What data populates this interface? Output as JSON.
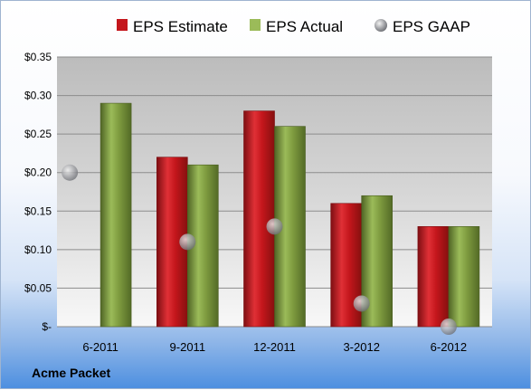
{
  "chart_data": {
    "type": "bar",
    "categories": [
      "6-2011",
      "9-2011",
      "12-2011",
      "3-2012",
      "6-2012"
    ],
    "series": [
      {
        "name": "EPS Estimate",
        "values": [
          null,
          0.22,
          0.28,
          0.16,
          0.13
        ],
        "color": "#c4161c",
        "kind": "bar"
      },
      {
        "name": "EPS Actual",
        "values": [
          0.29,
          0.21,
          0.26,
          0.17,
          0.13
        ],
        "color": "#77933c",
        "kind": "bar"
      },
      {
        "name": "EPS GAAP",
        "values": [
          0.2,
          0.11,
          0.13,
          0.03,
          0.0
        ],
        "color": "#a8aab0",
        "kind": "marker"
      }
    ],
    "ylim": [
      0,
      0.35
    ],
    "yticks": [
      {
        "value": 0.35,
        "label": "$0.35"
      },
      {
        "value": 0.3,
        "label": "$0.30"
      },
      {
        "value": 0.25,
        "label": "$0.25"
      },
      {
        "value": 0.2,
        "label": "$0.20"
      },
      {
        "value": 0.15,
        "label": "$0.15"
      },
      {
        "value": 0.1,
        "label": "$0.10"
      },
      {
        "value": 0.05,
        "label": "$0.05"
      },
      {
        "value": 0.0,
        "label": "$-"
      }
    ],
    "grid": true,
    "legend_position": "top"
  },
  "company": "Acme Packet"
}
